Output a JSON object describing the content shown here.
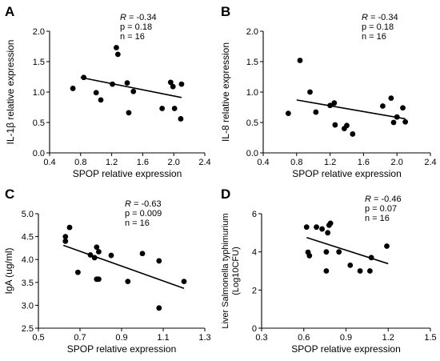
{
  "chart_data": [
    {
      "type": "scatter",
      "panel_label": "A",
      "xlabel": "SPOP relative expression",
      "ylabel": "IL-1β relative expression",
      "xlim": [
        0.4,
        2.4
      ],
      "ylim": [
        0.0,
        2.0
      ],
      "xticks": [
        "0.4",
        "0.8",
        "1.2",
        "1.6",
        "2.0",
        "2.4"
      ],
      "yticks": [
        "0.0",
        "0.5",
        "1.0",
        "1.5",
        "2.0"
      ],
      "stats": [
        {
          "prefix": "",
          "symbol": "R",
          "text": " = -0.34"
        },
        {
          "prefix": "p = 0.18",
          "symbol": "",
          "text": ""
        },
        {
          "prefix": "n = 16",
          "symbol": "",
          "text": ""
        }
      ],
      "points": [
        [
          0.7,
          1.06
        ],
        [
          0.84,
          1.24
        ],
        [
          1.0,
          0.99
        ],
        [
          1.06,
          0.87
        ],
        [
          1.21,
          1.13
        ],
        [
          1.26,
          1.73
        ],
        [
          1.28,
          1.62
        ],
        [
          1.4,
          1.15
        ],
        [
          1.42,
          0.66
        ],
        [
          1.48,
          1.01
        ],
        [
          1.85,
          0.73
        ],
        [
          1.96,
          1.16
        ],
        [
          1.99,
          1.09
        ],
        [
          2.01,
          0.73
        ],
        [
          2.09,
          0.56
        ],
        [
          2.1,
          1.13
        ]
      ],
      "fit_line": [
        [
          0.8,
          1.24
        ],
        [
          2.1,
          0.91
        ]
      ]
    },
    {
      "type": "scatter",
      "panel_label": "B",
      "xlabel": "SPOP relative expression",
      "ylabel": "IL-8 relative expression",
      "xlim": [
        0.4,
        2.4
      ],
      "ylim": [
        0.0,
        2.0
      ],
      "xticks": [
        "0.4",
        "0.8",
        "1.2",
        "1.6",
        "2.0",
        "2.4"
      ],
      "yticks": [
        "0.0",
        "0.5",
        "1.0",
        "1.5",
        "2.0"
      ],
      "stats": [
        {
          "prefix": "",
          "symbol": "R",
          "text": " = -0.34"
        },
        {
          "prefix": "p = 0.18",
          "symbol": "",
          "text": ""
        },
        {
          "prefix": "n = 16",
          "symbol": "",
          "text": ""
        }
      ],
      "points": [
        [
          0.7,
          0.65
        ],
        [
          0.84,
          1.52
        ],
        [
          0.96,
          1.0
        ],
        [
          1.03,
          0.67
        ],
        [
          1.2,
          0.78
        ],
        [
          1.25,
          0.82
        ],
        [
          1.26,
          0.46
        ],
        [
          1.37,
          0.4
        ],
        [
          1.4,
          0.45
        ],
        [
          1.47,
          0.31
        ],
        [
          1.83,
          0.77
        ],
        [
          1.93,
          0.9
        ],
        [
          1.96,
          0.5
        ],
        [
          2.0,
          0.59
        ],
        [
          2.07,
          0.74
        ],
        [
          2.1,
          0.51
        ]
      ],
      "fit_line": [
        [
          0.8,
          0.87
        ],
        [
          2.1,
          0.56
        ]
      ]
    },
    {
      "type": "scatter",
      "panel_label": "C",
      "xlabel": "SPOP relative expression",
      "ylabel": "IgA (ug/ml)",
      "xlim": [
        0.5,
        1.3
      ],
      "ylim": [
        2.5,
        5.0
      ],
      "xticks": [
        "0.5",
        "0.7",
        "0.9",
        "1.1",
        "1.3"
      ],
      "yticks": [
        "2.5",
        "3.0",
        "3.5",
        "4.0",
        "4.5",
        "5.0"
      ],
      "stats": [
        {
          "prefix": "",
          "symbol": "R",
          "text": " = -0.63"
        },
        {
          "prefix": "p = 0.009",
          "symbol": "",
          "text": ""
        },
        {
          "prefix": "n = 16",
          "symbol": "",
          "text": ""
        }
      ],
      "points": [
        [
          0.63,
          4.4
        ],
        [
          0.63,
          4.5
        ],
        [
          0.65,
          4.7
        ],
        [
          0.69,
          3.72
        ],
        [
          0.75,
          4.1
        ],
        [
          0.77,
          4.04
        ],
        [
          0.78,
          3.57
        ],
        [
          0.78,
          4.27
        ],
        [
          0.79,
          4.17
        ],
        [
          0.79,
          3.57
        ],
        [
          0.85,
          4.09
        ],
        [
          0.93,
          3.52
        ],
        [
          1.0,
          4.13
        ],
        [
          1.08,
          3.97
        ],
        [
          1.08,
          2.94
        ],
        [
          1.2,
          3.52
        ]
      ],
      "fit_line": [
        [
          0.62,
          4.31
        ],
        [
          1.2,
          3.37
        ]
      ]
    },
    {
      "type": "scatter",
      "panel_label": "D",
      "xlabel": "SPOP relative expression",
      "ylabel_lines": [
        "Liver Salmonella typhimurium",
        "(Log10CFU)"
      ],
      "xlim": [
        0.3,
        1.5
      ],
      "ylim": [
        0,
        6
      ],
      "xticks": [
        "0.3",
        "0.6",
        "0.9",
        "1.2",
        "1.5"
      ],
      "yticks": [
        "0",
        "2",
        "4",
        "6"
      ],
      "stats": [
        {
          "prefix": "",
          "symbol": "R",
          "text": " = -0.46"
        },
        {
          "prefix": "p = 0.07",
          "symbol": "",
          "text": ""
        },
        {
          "prefix": "n = 16",
          "symbol": "",
          "text": ""
        }
      ],
      "points": [
        [
          0.62,
          5.3
        ],
        [
          0.63,
          3.98
        ],
        [
          0.64,
          3.8
        ],
        [
          0.69,
          5.3
        ],
        [
          0.73,
          5.2
        ],
        [
          0.76,
          4.0
        ],
        [
          0.76,
          3.0
        ],
        [
          0.77,
          5.0
        ],
        [
          0.78,
          5.4
        ],
        [
          0.79,
          5.5
        ],
        [
          0.85,
          4.0
        ],
        [
          0.93,
          3.3
        ],
        [
          1.0,
          3.0
        ],
        [
          1.07,
          3.0
        ],
        [
          1.08,
          3.7
        ],
        [
          1.19,
          4.3
        ]
      ],
      "fit_line": [
        [
          0.62,
          4.75
        ],
        [
          1.2,
          3.38
        ]
      ]
    }
  ]
}
